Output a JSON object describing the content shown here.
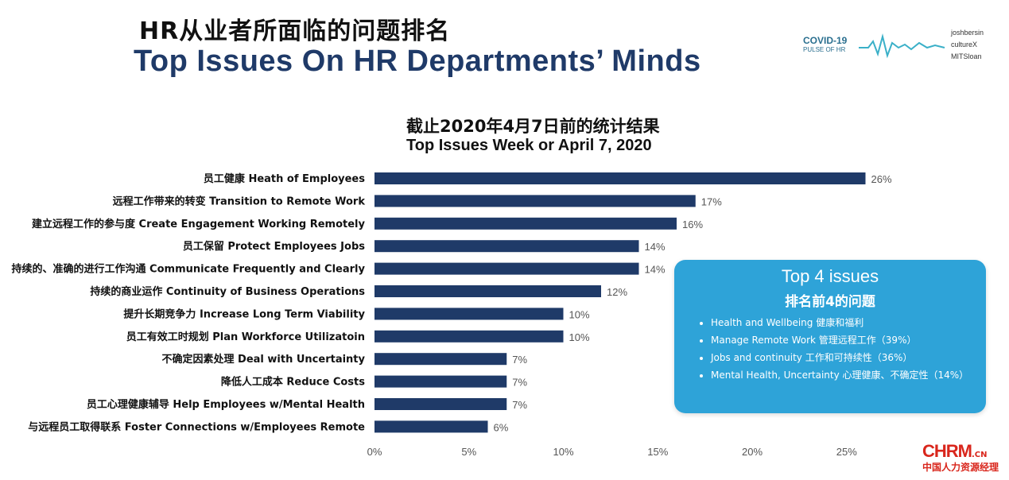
{
  "title_cn": "HR从业者所面临的问题排名",
  "title_en": "Top Issues On HR Departments’ Minds",
  "logo": {
    "covid": "COVID-19",
    "covid_sub": "PULSE OF HR",
    "partners": [
      "joshbersin",
      "cultureX",
      "MITSloan"
    ]
  },
  "colors": {
    "bar": "#1f3a68",
    "callout": "#2ea3d8",
    "brand_red": "#d9261c"
  },
  "chart_data": {
    "type": "bar",
    "orientation": "horizontal",
    "title": "截止2020年4月7日前的统计结果",
    "subtitle": "Top Issues Week or April 7, 2020",
    "categories": [
      "员工健康 Heath of Employees",
      "远程工作带来的转变 Transition to Remote Work",
      "建立远程工作的参与度 Create Engagement Working Remotely",
      "员工保留 Protect Employees Jobs",
      "持续的、准确的进行工作沟通 Communicate Frequently and Clearly",
      "持续的商业运作 Continuity of Business Operations",
      "提升长期竞争力 Increase Long Term Viability",
      "员工有效工时规划 Plan Workforce Utilizatoin",
      "不确定因素处理 Deal with Uncertainty",
      "降低人工成本 Reduce Costs",
      "员工心理健康辅导 Help Employees w/Mental Health",
      "与远程员工取得联系 Foster Connections w/Employees Remote"
    ],
    "values": [
      26,
      17,
      16,
      14,
      14,
      12,
      10,
      10,
      7,
      7,
      7,
      6
    ],
    "value_labels": [
      "26%",
      "17%",
      "16%",
      "14%",
      "14%",
      "12%",
      "10%",
      "10%",
      "7%",
      "7%",
      "7%",
      "6%"
    ],
    "xlim": [
      0,
      25
    ],
    "xticks": [
      "0%",
      "5%",
      "10%",
      "15%",
      "20%",
      "25%"
    ],
    "grid": false,
    "legend": "none"
  },
  "callout": {
    "title": "Top 4 issues",
    "subtitle": "排名前4的问题",
    "items": [
      "Health and Wellbeing 健康和福利",
      "Manage Remote Work 管理远程工作（39%）",
      "Jobs and continuity 工作和可持续性（36%）",
      "Mental Health, Uncertainty 心理健康、不确定性（14%）"
    ]
  },
  "brand": {
    "main": "CHRM",
    "suffix": ".CN",
    "sub": "中国人力资源经理"
  }
}
